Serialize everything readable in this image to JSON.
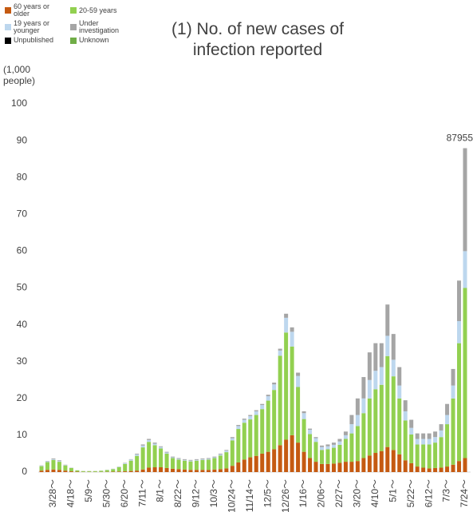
{
  "chart_data": {
    "type": "stacked-bar",
    "title": "(1) No. of new cases of infection reported",
    "y_label": "(1,000 people)",
    "categories": [
      null,
      null,
      "3/28～",
      null,
      null,
      "4/18～",
      null,
      null,
      "5/9～",
      null,
      null,
      "5/30～",
      null,
      null,
      "6/20～",
      null,
      null,
      "7/11～",
      null,
      null,
      "8/1～",
      null,
      null,
      "8/22～",
      null,
      null,
      "9/12～",
      null,
      null,
      "10/3～",
      null,
      null,
      "10/24～",
      null,
      null,
      "11/14～",
      null,
      null,
      "12/5～",
      null,
      null,
      "12/26～",
      null,
      null,
      "1/16～",
      null,
      null,
      "2/06～",
      null,
      null,
      "2/27～",
      null,
      null,
      "3/20～",
      null,
      null,
      "4/10～",
      null,
      null,
      "5/1～",
      null,
      null,
      "5/22～",
      null,
      null,
      "6/12～",
      null,
      null,
      "7/3～",
      null,
      null,
      "7/24～"
    ],
    "series": [
      {
        "name": "60 years or older",
        "color": "#c55a11",
        "values": [
          0.4,
          0.6,
          0.7,
          0.6,
          0.4,
          0.2,
          0.1,
          0.05,
          0.05,
          0.05,
          0.05,
          0.07,
          0.1,
          0.15,
          0.2,
          0.3,
          0.4,
          0.7,
          1.2,
          1.3,
          1.3,
          1.1,
          0.9,
          0.8,
          0.7,
          0.6,
          0.6,
          0.6,
          0.6,
          0.7,
          0.8,
          1.0,
          1.7,
          2.6,
          3.4,
          4.0,
          4.4,
          5.0,
          5.5,
          6.2,
          7.3,
          8.8,
          10.0,
          8.0,
          5.5,
          3.8,
          2.8,
          2.2,
          2.2,
          2.3,
          2.5,
          2.8,
          2.8,
          3.0,
          3.8,
          4.5,
          5.2,
          5.7,
          6.8,
          6.0,
          4.8,
          3.2,
          2.4,
          1.5,
          1.2,
          1.0,
          1.1,
          1.2,
          1.5,
          2.0,
          3.0,
          3.8
        ]
      },
      {
        "name": "20-59 years",
        "color": "#92d050",
        "values": [
          1.2,
          2.1,
          2.6,
          2.2,
          1.4,
          0.9,
          0.35,
          0.22,
          0.22,
          0.22,
          0.3,
          0.47,
          0.7,
          1.2,
          2.0,
          2.8,
          4.0,
          6.0,
          7.0,
          6.0,
          5.1,
          3.9,
          2.9,
          2.6,
          2.4,
          2.3,
          2.5,
          2.7,
          2.8,
          3.1,
          3.7,
          4.4,
          6.9,
          9.1,
          10.0,
          10.3,
          11.1,
          12.1,
          13.9,
          16.1,
          24.3,
          29.1,
          24.1,
          15.1,
          8.9,
          6.5,
          5.4,
          3.8,
          4.0,
          4.3,
          4.9,
          6.2,
          7.7,
          9.5,
          12.2,
          15.5,
          17.3,
          18.0,
          24.7,
          20.0,
          15.2,
          10.8,
          7.8,
          6.0,
          6.3,
          6.5,
          6.9,
          8.3,
          11.5,
          18.0,
          32.0,
          46.2
        ]
      },
      {
        "name": "19 years or younger",
        "color": "#bdd7ee",
        "values": [
          0.1,
          0.2,
          0.2,
          0.2,
          0.1,
          0.05,
          0.03,
          0.02,
          0.02,
          0.02,
          0.03,
          0.04,
          0.07,
          0.1,
          0.2,
          0.3,
          0.4,
          0.5,
          0.5,
          0.4,
          0.4,
          0.3,
          0.2,
          0.2,
          0.2,
          0.2,
          0.2,
          0.2,
          0.2,
          0.2,
          0.3,
          0.4,
          0.6,
          0.8,
          0.8,
          0.9,
          1.0,
          1.1,
          1.2,
          1.5,
          1.4,
          4.0,
          4.0,
          3.0,
          1.6,
          1.2,
          1.0,
          0.8,
          0.8,
          0.8,
          0.9,
          1.0,
          2.5,
          3.0,
          4.0,
          5.0,
          5.0,
          4.8,
          5.5,
          4.5,
          3.5,
          2.5,
          1.8,
          1.5,
          1.5,
          1.5,
          1.5,
          1.8,
          2.5,
          3.5,
          6.0,
          10.0
        ]
      },
      {
        "name": "Under investigation",
        "color": "#a5a5a5",
        "values": [
          0.1,
          0.1,
          0.2,
          0.2,
          0.1,
          0.05,
          0.02,
          0.01,
          0.01,
          0.01,
          0.02,
          0.02,
          0.03,
          0.05,
          0.1,
          0.1,
          0.2,
          0.3,
          0.3,
          0.3,
          0.2,
          0.2,
          0.2,
          0.2,
          0.2,
          0.2,
          0.2,
          0.2,
          0.2,
          0.2,
          0.2,
          0.2,
          0.3,
          0.3,
          0.3,
          0.3,
          0.3,
          0.3,
          0.4,
          0.5,
          0.5,
          1.1,
          1.2,
          0.9,
          0.5,
          0.3,
          0.3,
          0.4,
          0.5,
          0.6,
          0.7,
          1.0,
          2.5,
          4.5,
          5.8,
          7.5,
          7.5,
          6.5,
          8.5,
          7.0,
          5.0,
          3.0,
          2.2,
          1.5,
          1.5,
          1.5,
          1.5,
          1.7,
          3.0,
          4.5,
          11.0,
          27.955
        ]
      },
      {
        "name": "Unpublished",
        "color": "#000000",
        "values": [
          0,
          0,
          0,
          0,
          0,
          0,
          0,
          0,
          0,
          0,
          0,
          0,
          0,
          0,
          0,
          0,
          0,
          0,
          0,
          0,
          0,
          0,
          0,
          0,
          0,
          0,
          0,
          0,
          0,
          0,
          0,
          0,
          0,
          0,
          0,
          0,
          0,
          0,
          0,
          0,
          0,
          0,
          0,
          0,
          0,
          0,
          0,
          0,
          0,
          0,
          0,
          0,
          0,
          0,
          0,
          0,
          0,
          0,
          0,
          0,
          0,
          0,
          0,
          0,
          0,
          0,
          0,
          0,
          0,
          0,
          0,
          0
        ]
      },
      {
        "name": "Unknown",
        "color": "#70ad47",
        "values": [
          0,
          0,
          0,
          0,
          0,
          0,
          0,
          0,
          0,
          0,
          0,
          0,
          0,
          0,
          0,
          0,
          0,
          0,
          0,
          0,
          0,
          0,
          0,
          0,
          0,
          0,
          0,
          0,
          0,
          0,
          0,
          0,
          0,
          0,
          0,
          0,
          0,
          0,
          0,
          0,
          0,
          0,
          0,
          0,
          0,
          0,
          0,
          0,
          0,
          0,
          0,
          0,
          0,
          0,
          0,
          0,
          0,
          0,
          0,
          0,
          0,
          0,
          0,
          0,
          0,
          0,
          0,
          0,
          0,
          0,
          0,
          0
        ]
      }
    ],
    "annotation": {
      "value": 87.955,
      "label": "87955"
    },
    "ylim": [
      0,
      100
    ],
    "yticks": [
      0,
      10,
      20,
      30,
      40,
      50,
      60,
      70,
      80,
      90,
      100
    ],
    "grid": false
  }
}
